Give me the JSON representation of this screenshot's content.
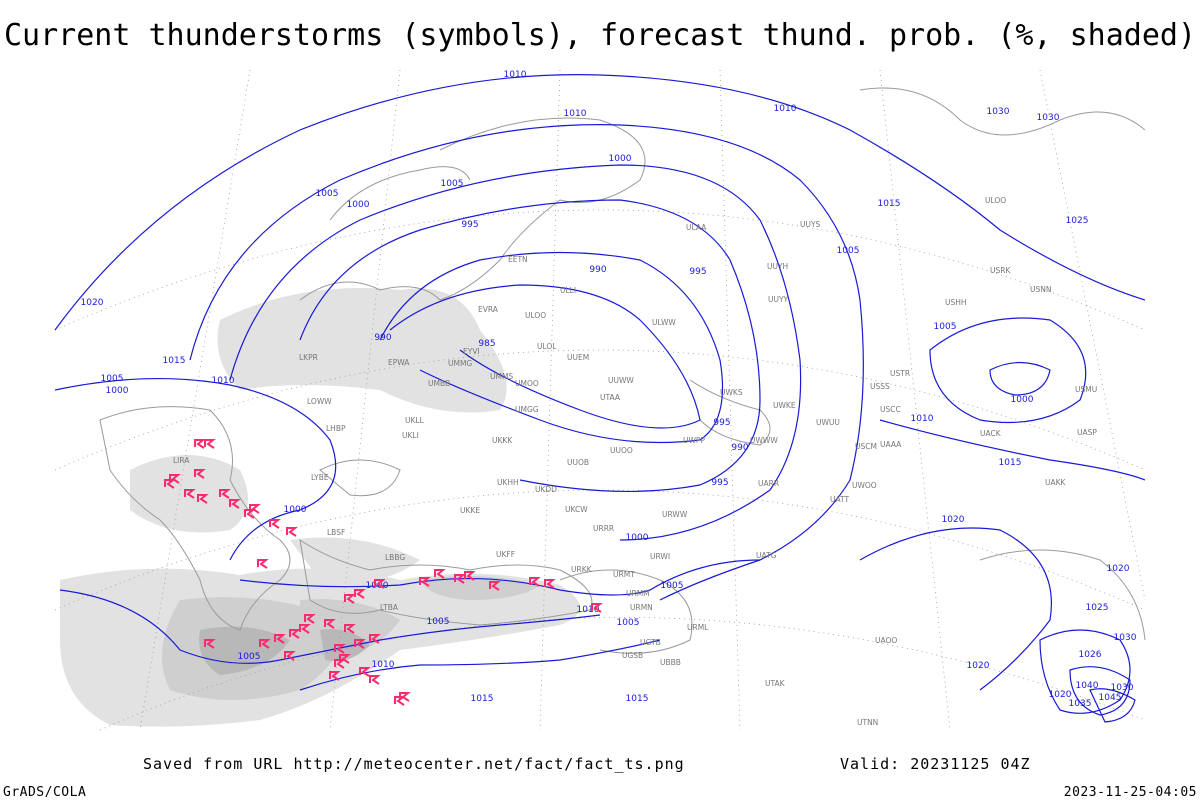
{
  "title": "Current thunderstorms (symbols), forecast thund. prob. (%, shaded)",
  "footer": {
    "saved": "Saved from URL http://meteocenter.net/fact/fact_ts.png",
    "valid": "Valid: 20231125 04Z",
    "software": "GrADS/COLA",
    "timestamp": "2023-11-25-04:05"
  },
  "isobar_labels": [
    1010,
    1010,
    1010,
    1030,
    1030,
    1000,
    1005,
    1005,
    1000,
    1015,
    1025,
    995,
    990,
    995,
    1005,
    1020,
    990,
    985,
    1005,
    1015,
    1005,
    1000,
    1010,
    1000,
    995,
    990,
    1010,
    1015,
    995,
    1000,
    1020,
    1000,
    1020,
    1000,
    1005,
    1010,
    1005,
    1005,
    1025,
    1030,
    1005,
    1026,
    1010,
    1020,
    1040,
    1030,
    1045,
    1015,
    1015,
    1035,
    1020
  ],
  "station_labels": [
    "ULOO",
    "ULOL",
    "UUEM",
    "UUWW",
    "UMMS",
    "UMOO",
    "UMGG",
    "UKKK",
    "UUOO",
    "UUOB",
    "UKHH",
    "UKDD",
    "UKKE",
    "EVRA",
    "EYVI",
    "EPWA",
    "UMMG",
    "UMBB",
    "UKLL",
    "UKLI",
    "LHBP",
    "LYBE",
    "LBSF",
    "LBBG",
    "LTBA",
    "LIRA",
    "LKPR",
    "LOWW",
    "UKFF",
    "URKK",
    "URMT",
    "URMM",
    "URMN",
    "URML",
    "UGTB",
    "UGSB",
    "UBBB",
    "UTAK",
    "URWI",
    "URRR",
    "UKCW",
    "URWW",
    "UWWW",
    "UUYY",
    "ULAA",
    "UUYH",
    "ULWW",
    "UWPP",
    "UWKS",
    "UWKE",
    "UWUU",
    "UATT",
    "UWOO",
    "USSS",
    "USCC",
    "USCM",
    "UAAA",
    "USTR",
    "USHH",
    "USRK",
    "USNN",
    "UACK",
    "UASP",
    "UAKK",
    "UATG",
    "UARR",
    "ULLI",
    "EETN",
    "UUYS",
    "ULOO",
    "USMU",
    "UAOO",
    "UTNN",
    "UTAA"
  ]
}
